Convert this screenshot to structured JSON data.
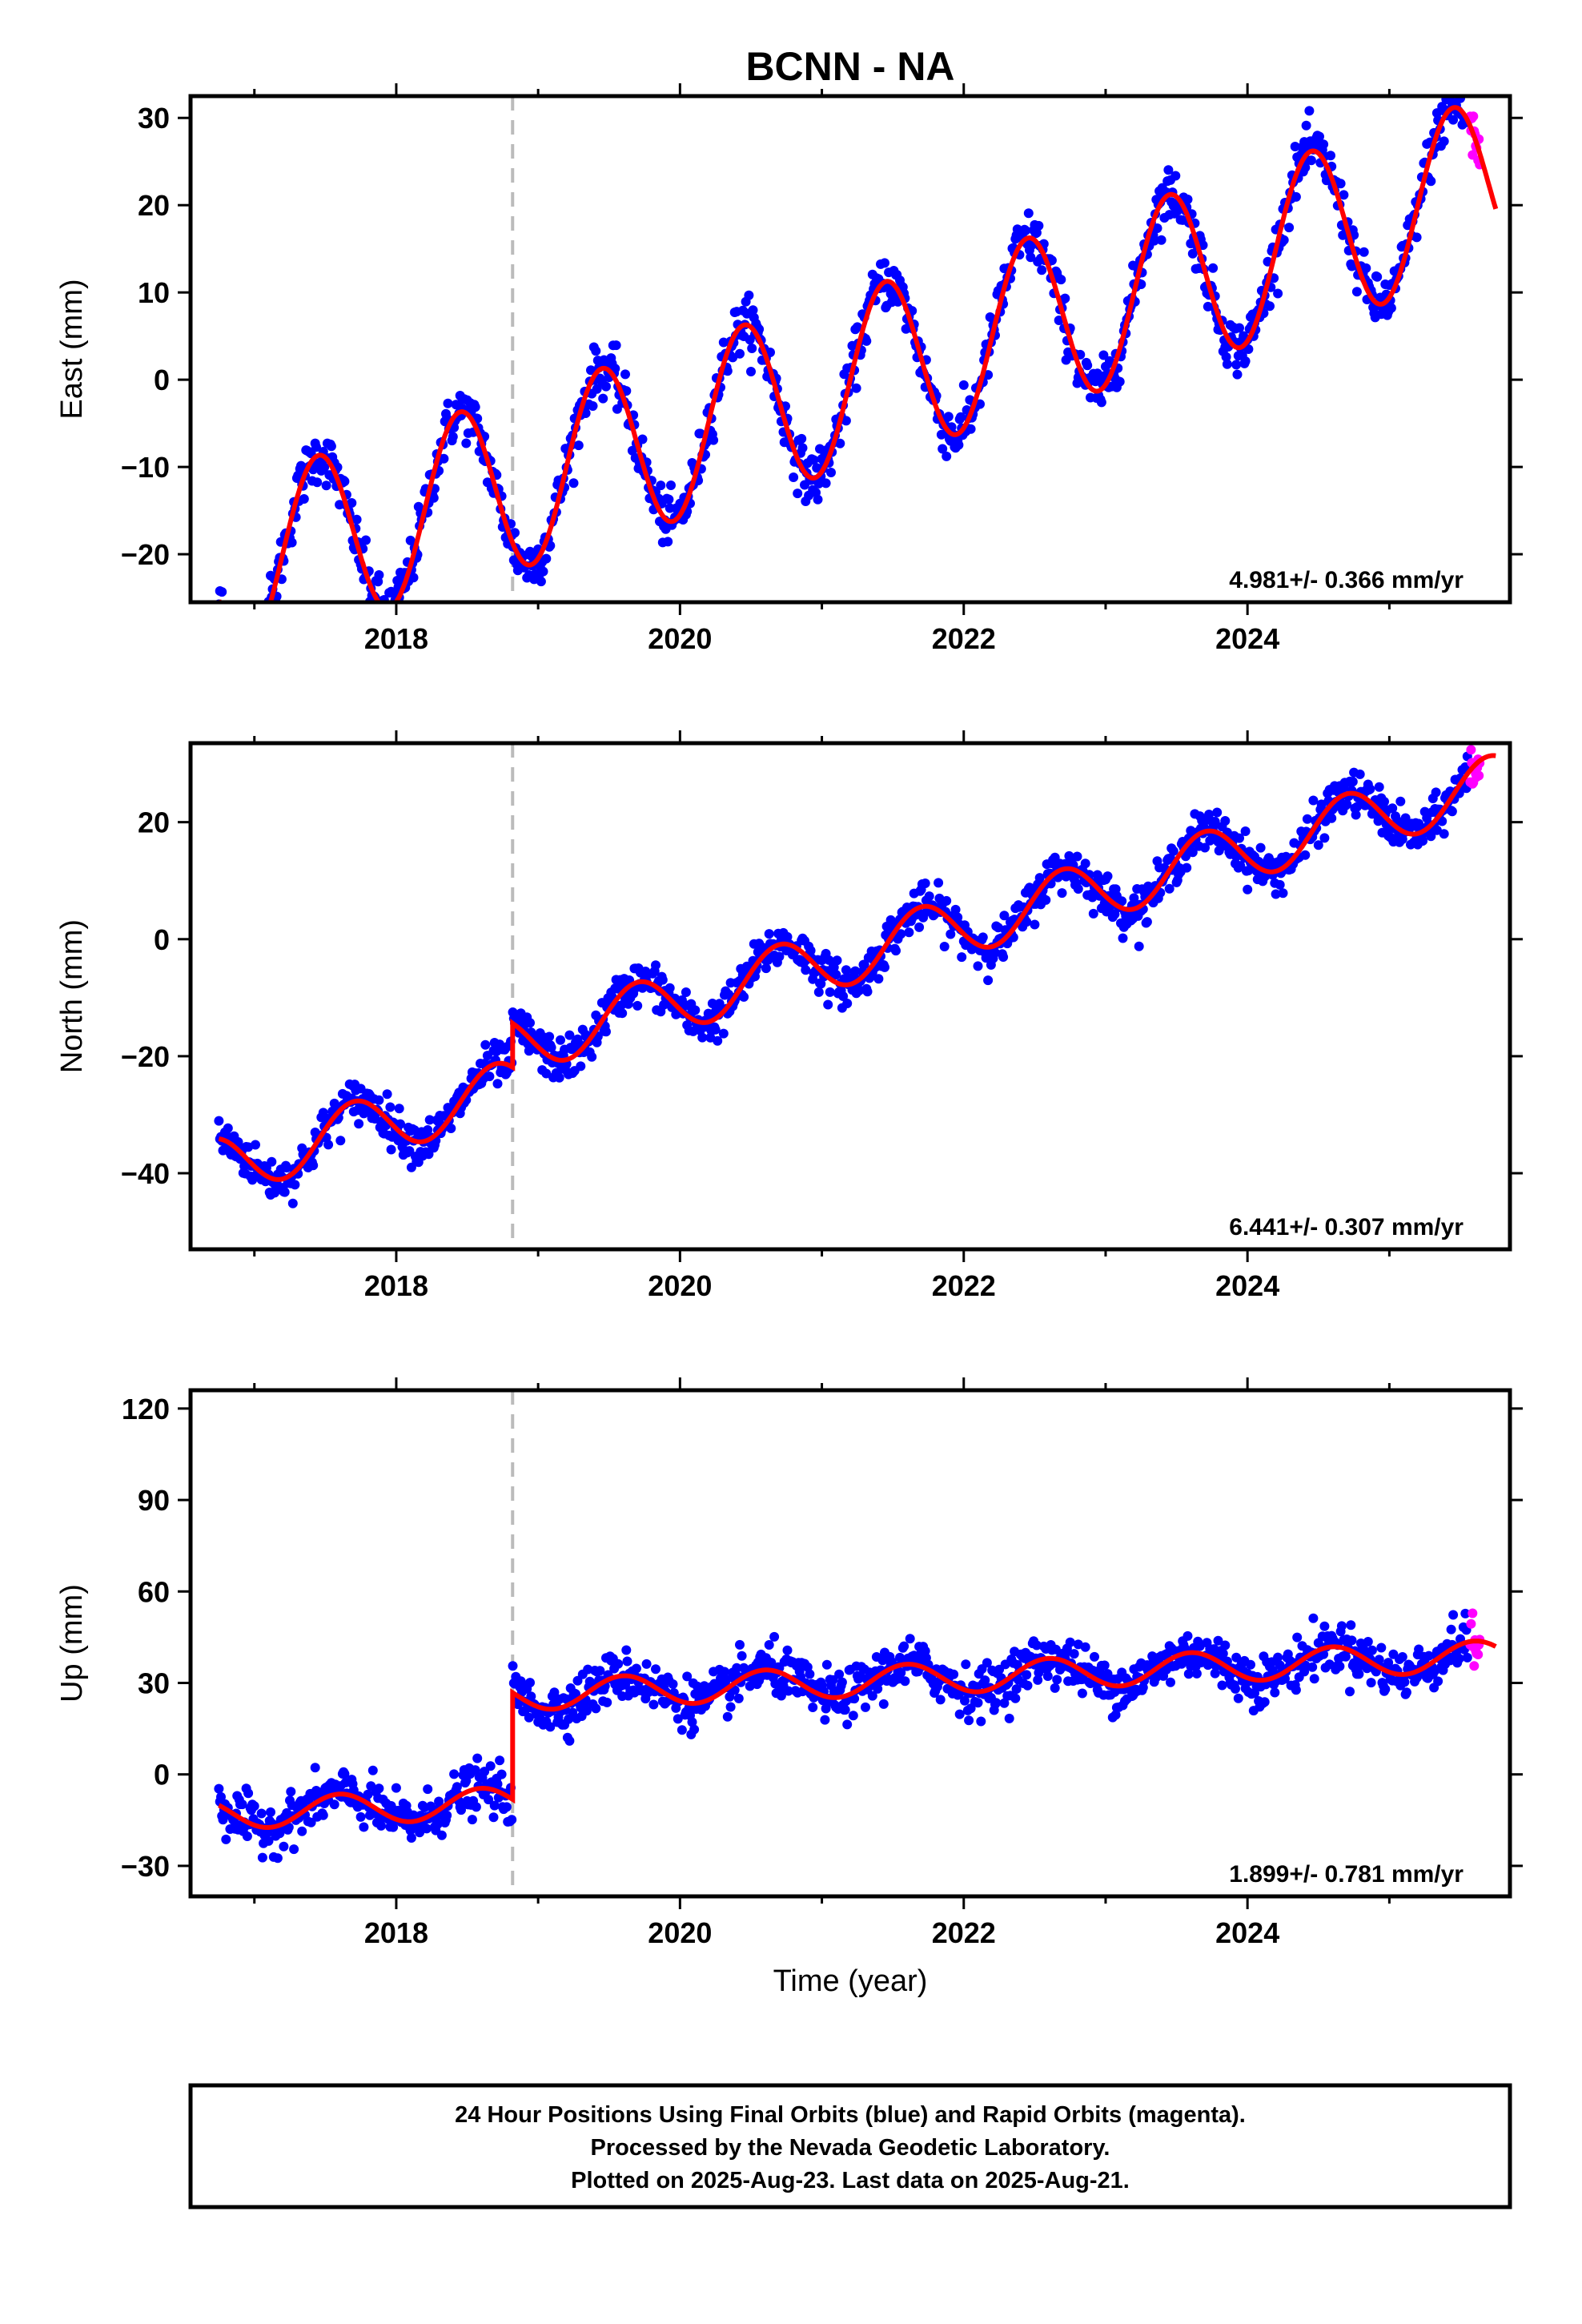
{
  "title": "BCNN - NA",
  "colors": {
    "final_orbits": "#0000ff",
    "rapid_orbits": "#ff00ff",
    "model": "#ff0000",
    "equipment_change": "#bbbbbb"
  },
  "chart_data": [
    {
      "type": "scatter",
      "component": "east",
      "ylabel": "East (mm)",
      "xlim": [
        2016.55,
        2025.85
      ],
      "ylim": [
        -25.5,
        32.5
      ],
      "xticks": [
        2018,
        2020,
        2022,
        2024
      ],
      "xtick_labels": [
        "2018",
        "2020",
        "2022",
        "2024"
      ],
      "yticks": [
        -20,
        -10,
        0,
        10,
        20,
        30
      ],
      "ytick_labels": [
        "−20",
        "−10",
        "0",
        "10",
        "20",
        "30"
      ],
      "rate_label": "4.981+/- 0.366 mm/yr",
      "equipment_change": 2018.82,
      "model": {
        "intercept_at_2021": -1.0,
        "rate": 4.981,
        "annual_amp": 10.0,
        "annual_phase": 0.2,
        "offset": 0,
        "start": 2016.75,
        "end": 2025.75
      },
      "final_range": [
        2016.75,
        2025.55
      ],
      "rapid_range": [
        2025.57,
        2025.64
      ],
      "noise": 1.5
    },
    {
      "type": "scatter",
      "component": "north",
      "ylabel": "North (mm)",
      "xlim": [
        2016.55,
        2025.85
      ],
      "ylim": [
        -53,
        33.5
      ],
      "xticks": [
        2018,
        2020,
        2022,
        2024
      ],
      "xtick_labels": [
        "2018",
        "2020",
        "2022",
        "2024"
      ],
      "yticks": [
        -40,
        -20,
        0,
        20
      ],
      "ytick_labels": [
        "−40",
        "−20",
        "0",
        "20"
      ],
      "rate_label": "6.441+/- 0.307 mm/yr",
      "equipment_change": 2018.82,
      "model": {
        "intercept_at_2021": -4.0,
        "rate": 6.441,
        "annual_amp": 5.0,
        "annual_phase": 0.45,
        "offset": 7.5,
        "start": 2016.75,
        "end": 2025.75
      },
      "final_range": [
        2016.75,
        2025.55
      ],
      "rapid_range": [
        2025.57,
        2025.64
      ],
      "noise": 1.8
    },
    {
      "type": "scatter",
      "component": "up",
      "ylabel": "Up (mm)",
      "xlabel": "Time (year)",
      "xlim": [
        2016.55,
        2025.85
      ],
      "ylim": [
        -40,
        126
      ],
      "xticks": [
        2018,
        2020,
        2022,
        2024
      ],
      "xtick_labels": [
        "2018",
        "2020",
        "2022",
        "2024"
      ],
      "yticks": [
        -30,
        0,
        30,
        60,
        90,
        120
      ],
      "ytick_labels": [
        "−30",
        "0",
        "30",
        "60",
        "90",
        "120"
      ],
      "rate_label": "1.899+/- 0.781 mm/yr",
      "equipment_change": 2018.82,
      "model": {
        "intercept_at_2021": 30.0,
        "rate": 1.899,
        "annual_amp": 5.0,
        "annual_phase": 0.35,
        "offset": 35.0,
        "start": 2016.75,
        "end": 2025.75
      },
      "final_range": [
        2016.75,
        2025.55
      ],
      "rapid_range": [
        2025.57,
        2025.64
      ],
      "noise": 4.0
    }
  ],
  "footer": {
    "line1": "24 Hour Positions Using Final Orbits (blue) and Rapid Orbits (magenta).",
    "line2": "Processed by the Nevada Geodetic Laboratory.",
    "line3": "Plotted on 2025-Aug-23. Last data on 2025-Aug-21."
  }
}
